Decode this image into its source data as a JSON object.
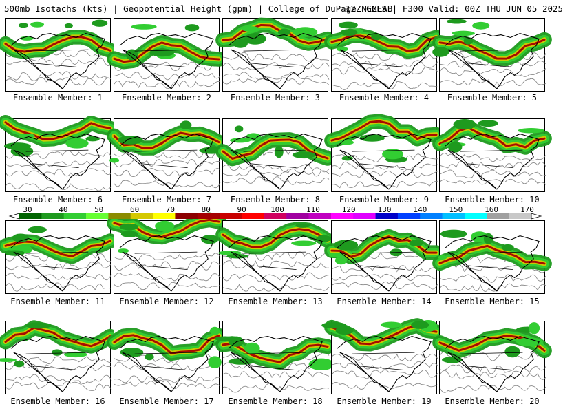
{
  "header": {
    "title": "500mb Isotachs (kts) | Geopotential Height (gpm) | College of DuPage NEXLAB",
    "run": "12Z GEFS | F300 Valid: 00Z THU JUN 05 2025"
  },
  "colorbar": {
    "tick_labels": [
      "30",
      "40",
      "50",
      "60",
      "70",
      "80",
      "90",
      "100",
      "110",
      "120",
      "130",
      "140",
      "150",
      "160",
      "170"
    ],
    "colors": [
      "#006400",
      "#1e9a1e",
      "#32cd32",
      "#66ff33",
      "#8b8b00",
      "#d4c800",
      "#ffff00",
      "#8b0000",
      "#a50000",
      "#c80000",
      "#ff0000",
      "#d00060",
      "#a000a0",
      "#c000c0",
      "#ff00ff",
      "#e000ff",
      "#0000c8",
      "#0040ff",
      "#0080ff",
      "#00bfff",
      "#00ffff",
      "#a0a0a0",
      "#c8c8c8"
    ]
  },
  "panels": [
    {
      "label": "Ensemble Member: 1"
    },
    {
      "label": "Ensemble Member: 2"
    },
    {
      "label": "Ensemble Member: 3"
    },
    {
      "label": "Ensemble Member: 4"
    },
    {
      "label": "Ensemble Member: 5"
    },
    {
      "label": "Ensemble Member: 6"
    },
    {
      "label": "Ensemble Member: 7"
    },
    {
      "label": "Ensemble Member: 8"
    },
    {
      "label": "Ensemble Member: 9"
    },
    {
      "label": "Ensemble Member: 10"
    },
    {
      "label": "Ensemble Member: 11"
    },
    {
      "label": "Ensemble Member: 12"
    },
    {
      "label": "Ensemble Member: 13"
    },
    {
      "label": "Ensemble Member: 14"
    },
    {
      "label": "Ensemble Member: 15"
    },
    {
      "label": "Ensemble Member: 16"
    },
    {
      "label": "Ensemble Member: 17"
    },
    {
      "label": "Ensemble Member: 18"
    },
    {
      "label": "Ensemble Member: 19"
    },
    {
      "label": "Ensemble Member: 20"
    }
  ]
}
